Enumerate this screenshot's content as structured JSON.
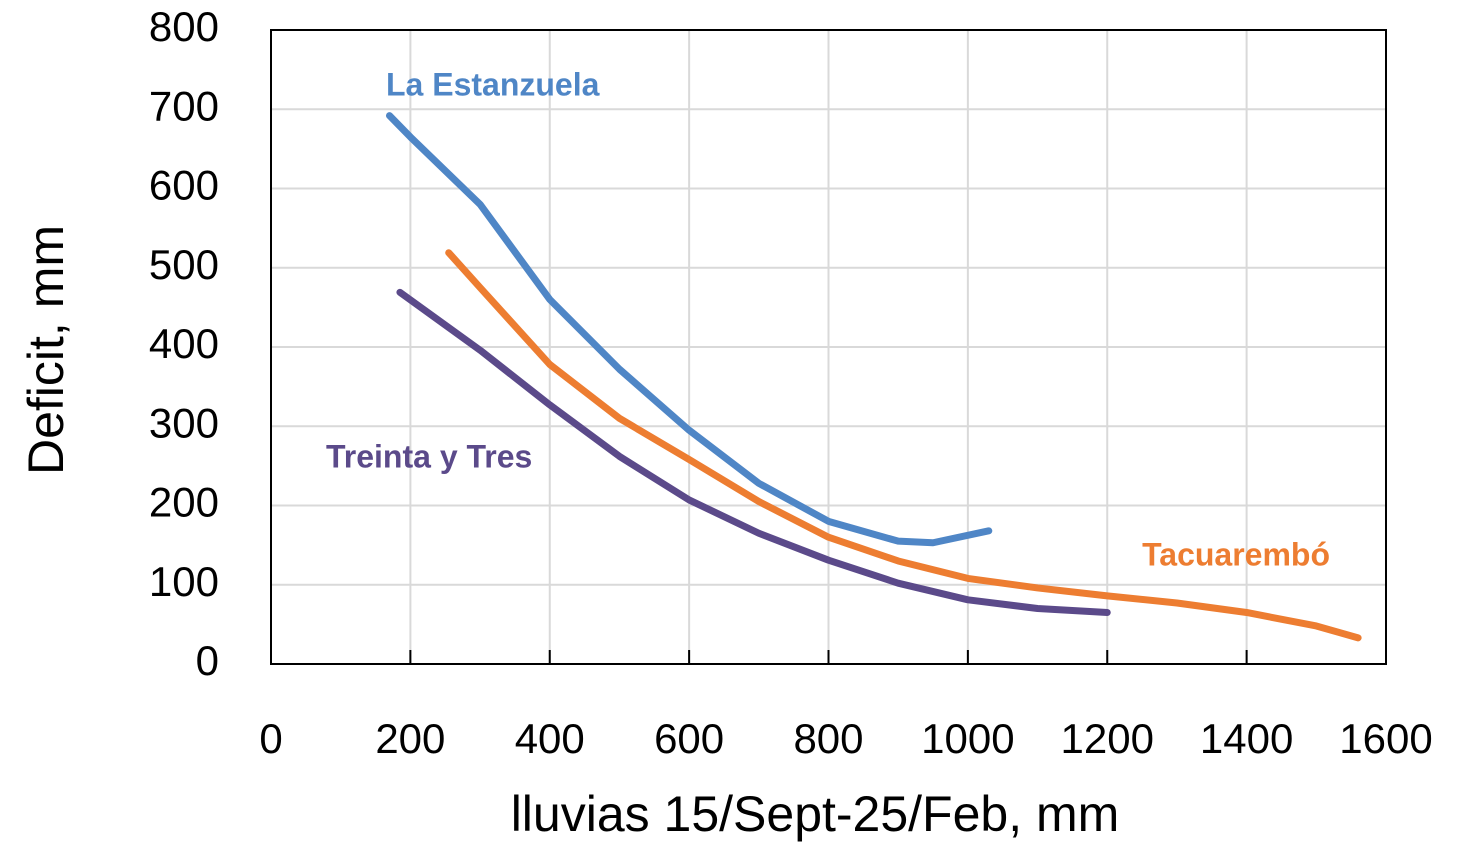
{
  "chart_data": {
    "type": "line",
    "x_label": "lluvias 15/Sept-25/Feb,  mm",
    "y_label": "Deficit, mm",
    "xlim": [
      0,
      1600
    ],
    "xticks": [
      0,
      200,
      400,
      600,
      800,
      1000,
      1200,
      1400,
      1600
    ],
    "ylim": [
      0,
      800
    ],
    "yticks": [
      0,
      100,
      200,
      300,
      400,
      500,
      600,
      700,
      800
    ],
    "grid": true,
    "series": [
      {
        "name": "La Estanzuela",
        "color": "#4f86c6",
        "x": [
          170,
          200,
          300,
          400,
          500,
          600,
          700,
          800,
          900,
          950,
          1030
        ],
        "values": [
          692,
          665,
          580,
          460,
          372,
          295,
          228,
          180,
          155,
          153,
          168
        ]
      },
      {
        "name": "Tacuarembó",
        "color": "#ed7d31",
        "x": [
          255,
          300,
          400,
          500,
          600,
          700,
          800,
          900,
          1000,
          1100,
          1200,
          1300,
          1400,
          1500,
          1560
        ],
        "values": [
          519,
          475,
          378,
          310,
          258,
          205,
          160,
          130,
          108,
          96,
          86,
          77,
          65,
          48,
          33
        ]
      },
      {
        "name": "Treinta y Tres",
        "color": "#5b4a8a",
        "x": [
          185,
          300,
          400,
          500,
          600,
          700,
          800,
          900,
          1000,
          1100,
          1200
        ],
        "values": [
          469,
          396,
          327,
          262,
          207,
          165,
          131,
          102,
          81,
          70,
          65
        ]
      }
    ]
  }
}
